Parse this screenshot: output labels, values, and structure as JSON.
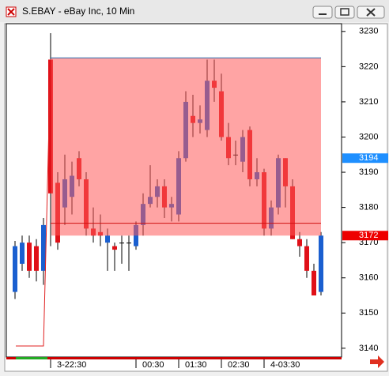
{
  "window": {
    "title": "S.EBAY - eBay Inc, 10 Min"
  },
  "chart_data": {
    "type": "candlestick",
    "categories": [
      null,
      null,
      null,
      null,
      null,
      "3-22:30",
      null,
      null,
      null,
      null,
      null,
      null,
      null,
      null,
      null,
      null,
      null,
      "00:30",
      null,
      null,
      null,
      null,
      null,
      "01:30",
      null,
      null,
      null,
      null,
      null,
      "02:30",
      null,
      null,
      null,
      null,
      null,
      "4-03:30",
      null,
      null,
      null,
      null,
      null,
      null,
      null,
      null
    ],
    "open": [
      3156,
      3164,
      3170,
      3169,
      3162,
      3222,
      3187,
      3180,
      3183,
      3194,
      3188,
      3174,
      3173,
      3170,
      3169,
      3170,
      3170,
      3169,
      3175,
      3181,
      3183,
      3186,
      3180,
      3178,
      3194,
      3206,
      3204,
      3202,
      3216,
      3213,
      3200,
      3195,
      3193,
      3202,
      3188,
      3190,
      3174,
      3180,
      3194,
      3186,
      3171,
      3169,
      3162,
      3156
    ],
    "high": [
      3170.5,
      3172,
      3172,
      3171,
      3177,
      3229.5,
      3190,
      3195,
      3193,
      3196,
      3190,
      3180,
      3178,
      3174,
      3170,
      3172,
      3172,
      3176,
      3184,
      3192,
      3188,
      3188,
      3183,
      3196,
      3213,
      3212,
      3209,
      3222,
      3222,
      3218,
      3204,
      3199,
      3202,
      3203,
      3194,
      3191,
      3182,
      3195,
      3194,
      3188,
      3173,
      3171,
      3164,
      3173
    ],
    "low": [
      3154,
      3162,
      3160,
      3159,
      3158,
      3169,
      3168,
      3175,
      3178,
      3186,
      3172,
      3170,
      3169,
      3162,
      3162,
      3164,
      3162,
      3168,
      3172,
      3180,
      3180,
      3177,
      3176,
      3176,
      3193,
      3200,
      3201,
      3200,
      3210,
      3199,
      3192,
      3192,
      3190,
      3186,
      3186,
      3172,
      3172,
      3178,
      3180,
      3171,
      3166,
      3160,
      3155,
      3155
    ],
    "close": [
      3169,
      3170,
      3162,
      3162,
      3175,
      3184,
      3170,
      3188,
      3189,
      3188,
      3174,
      3172,
      3172,
      3172,
      3168,
      3170,
      3170,
      3175,
      3181,
      3183,
      3186,
      3180,
      3181,
      3194,
      3210,
      3204,
      3205,
      3216,
      3214,
      3200,
      3194,
      3195,
      3200,
      3188,
      3190,
      3174,
      3180,
      3194,
      3186,
      3171,
      3169,
      3162,
      3155,
      3172
    ],
    "up_color": "#1a5fd0",
    "down_color": "#e01018",
    "ylim": [
      3137.5,
      3232.2
    ],
    "yticks": [
      3140,
      3150,
      3160,
      3170,
      3180,
      3190,
      3200,
      3210,
      3220,
      3230
    ],
    "zone": [
      3172,
      3222.5
    ],
    "zone_color": "#ff5a5a",
    "level_line": 3175.5,
    "price_labels": [
      {
        "value": 3194,
        "color": "#1e8fff"
      },
      {
        "value": 3172,
        "color": "#ee0000"
      }
    ]
  }
}
